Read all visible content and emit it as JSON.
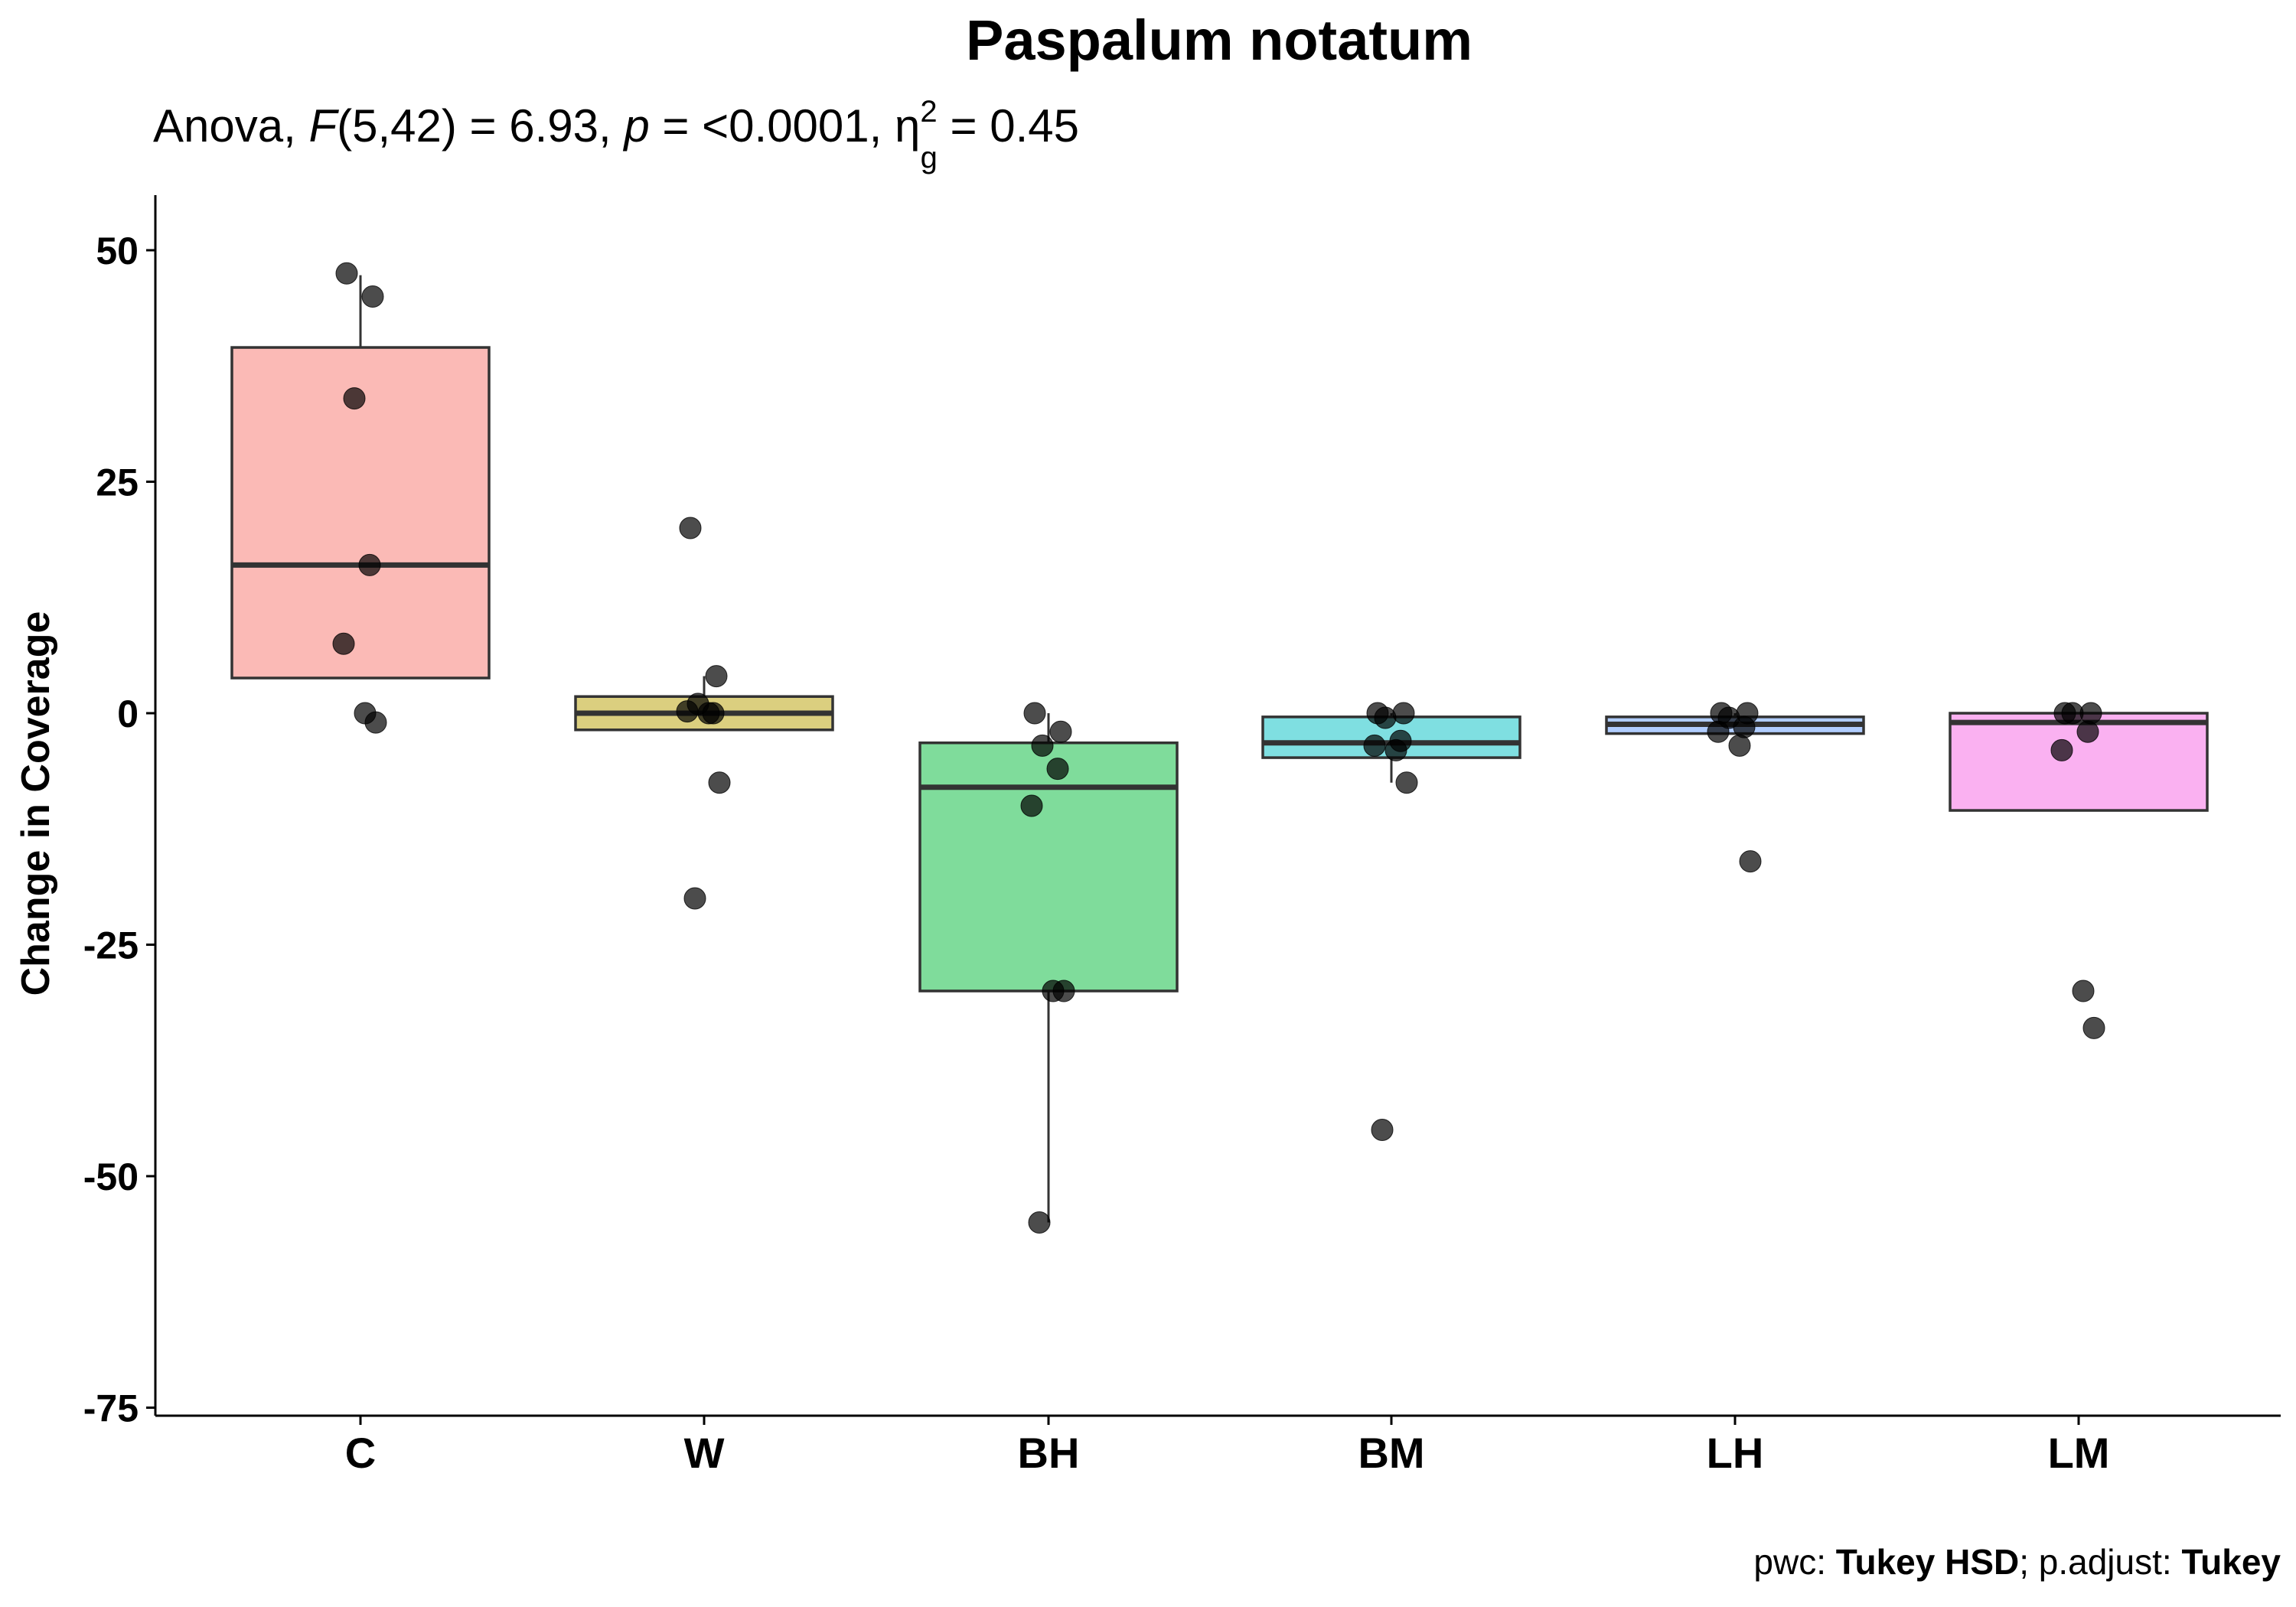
{
  "chart_data": {
    "type": "box",
    "title": "Paspalum notatum",
    "subtitle": {
      "p1": "Anova, ",
      "f_symbol": "F",
      "p2": "(5,42) = 6.93, ",
      "p_symbol": "p",
      "p3": " = <0.0001, ",
      "eta_symbol": "η",
      "eta_sup": "2",
      "eta_sub": "g",
      "p4": " = 0.45"
    },
    "xlabel": "",
    "ylabel": "Change in Coverage",
    "ylim": [
      -75,
      56
    ],
    "yticks": [
      {
        "value": 50,
        "label": "50"
      },
      {
        "value": 25,
        "label": "25"
      },
      {
        "value": 0,
        "label": "0"
      },
      {
        "value": -25,
        "label": "-25"
      },
      {
        "value": -50,
        "label": "-50"
      },
      {
        "value": -75,
        "label": "-75"
      }
    ],
    "grid": false,
    "legend": "none",
    "categories": [
      "C",
      "W",
      "BH",
      "BM",
      "LH",
      "LM"
    ],
    "boxes": [
      {
        "category": "C",
        "color": "#F8766D",
        "q1": 3.8,
        "median": 16,
        "q3": 39.5,
        "whisker_low": 3.8,
        "whisker_high": 47.3
      },
      {
        "category": "W",
        "color": "#B79F00",
        "q1": -1.8,
        "median": 0,
        "q3": 1.8,
        "whisker_low": -1.8,
        "whisker_high": 4
      },
      {
        "category": "BH",
        "color": "#00BA38",
        "q1": -30,
        "median": -8,
        "q3": -3.2,
        "whisker_low": -55,
        "whisker_high": 0
      },
      {
        "category": "BM",
        "color": "#00BFC4",
        "q1": -4.8,
        "median": -3.2,
        "q3": -0.4,
        "whisker_low": -7.5,
        "whisker_high": 0
      },
      {
        "category": "LH",
        "color": "#619CFF",
        "q1": -2.2,
        "median": -1.2,
        "q3": -0.4,
        "whisker_low": -2.2,
        "whisker_high": 0
      },
      {
        "category": "LM",
        "color": "#F564E3",
        "q1": -10.5,
        "median": -1,
        "q3": 0,
        "whisker_low": -10.5,
        "whisker_high": 0
      }
    ],
    "points": [
      {
        "category": "C",
        "values": [
          47.5,
          45,
          34,
          16,
          7.5,
          0,
          -1
        ]
      },
      {
        "category": "W",
        "values": [
          20,
          4,
          1,
          0,
          0.2,
          0,
          -7.5,
          -20
        ]
      },
      {
        "category": "BH",
        "values": [
          0,
          -2,
          -3.5,
          -6,
          -10,
          -30,
          -30,
          -55
        ]
      },
      {
        "category": "BM",
        "values": [
          0,
          0,
          -0.5,
          -3,
          -3.5,
          -4,
          -7.5,
          -45
        ]
      },
      {
        "category": "LH",
        "values": [
          0,
          0,
          -0.5,
          -1.5,
          -2,
          -3.5,
          -16
        ]
      },
      {
        "category": "LM",
        "values": [
          0,
          0,
          0,
          -2,
          -4,
          -30,
          -34
        ]
      }
    ],
    "caption": {
      "prefix": "pwc: ",
      "method": "Tukey HSD",
      "middle": "; p.adjust: ",
      "adjust": "Tukey"
    }
  }
}
